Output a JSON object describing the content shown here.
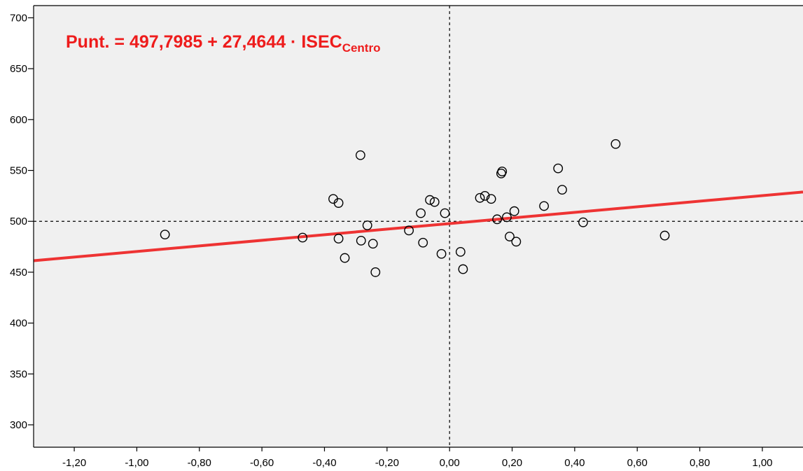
{
  "chart_data": {
    "type": "scatter",
    "title": "",
    "xlabel": "",
    "ylabel": "",
    "xlim": [
      -1.33,
      1.13
    ],
    "ylim": [
      278,
      712
    ],
    "x_ticks": [
      -1.2,
      -1.0,
      -0.8,
      -0.6,
      -0.4,
      -0.2,
      0.0,
      0.2,
      0.4,
      0.6,
      0.8,
      1.0
    ],
    "x_tick_labels": [
      "-1,20",
      "-1,00",
      "-0,80",
      "-0,60",
      "-0,40",
      "-0,20",
      "0,00",
      "0,20",
      "0,40",
      "0,60",
      "0,80",
      "1,00"
    ],
    "y_ticks": [
      300,
      350,
      400,
      450,
      500,
      550,
      600,
      650,
      700
    ],
    "y_tick_labels": [
      "300",
      "350",
      "400",
      "450",
      "500",
      "550",
      "600",
      "650",
      "700"
    ],
    "grid": false,
    "reference_lines": {
      "x": 0.0,
      "y": 500
    },
    "regression": {
      "intercept": 497.7985,
      "slope": 27.4644,
      "color": "#ee3333"
    },
    "equation": {
      "text": "Punt. = 497,7985 + 27,4644 · ISEC",
      "subscript": "Centro",
      "color": "#ee1c1c"
    },
    "plot_background": "#f0f0f0",
    "points": [
      {
        "x": -0.91,
        "y": 487
      },
      {
        "x": -0.47,
        "y": 484
      },
      {
        "x": -0.372,
        "y": 522
      },
      {
        "x": -0.355,
        "y": 518
      },
      {
        "x": -0.355,
        "y": 483
      },
      {
        "x": -0.335,
        "y": 464
      },
      {
        "x": -0.285,
        "y": 565
      },
      {
        "x": -0.283,
        "y": 481
      },
      {
        "x": -0.263,
        "y": 496
      },
      {
        "x": -0.245,
        "y": 478
      },
      {
        "x": -0.237,
        "y": 450
      },
      {
        "x": -0.13,
        "y": 491
      },
      {
        "x": -0.092,
        "y": 508
      },
      {
        "x": -0.085,
        "y": 479
      },
      {
        "x": -0.063,
        "y": 521
      },
      {
        "x": -0.048,
        "y": 519
      },
      {
        "x": -0.026,
        "y": 468
      },
      {
        "x": -0.015,
        "y": 508
      },
      {
        "x": 0.035,
        "y": 470
      },
      {
        "x": 0.043,
        "y": 453
      },
      {
        "x": 0.097,
        "y": 523
      },
      {
        "x": 0.113,
        "y": 525
      },
      {
        "x": 0.133,
        "y": 522
      },
      {
        "x": 0.152,
        "y": 502
      },
      {
        "x": 0.165,
        "y": 547
      },
      {
        "x": 0.168,
        "y": 549
      },
      {
        "x": 0.183,
        "y": 504
      },
      {
        "x": 0.192,
        "y": 485
      },
      {
        "x": 0.207,
        "y": 510
      },
      {
        "x": 0.213,
        "y": 480
      },
      {
        "x": 0.302,
        "y": 515
      },
      {
        "x": 0.347,
        "y": 552
      },
      {
        "x": 0.36,
        "y": 531
      },
      {
        "x": 0.427,
        "y": 499
      },
      {
        "x": 0.531,
        "y": 576
      },
      {
        "x": 0.688,
        "y": 486
      }
    ]
  }
}
